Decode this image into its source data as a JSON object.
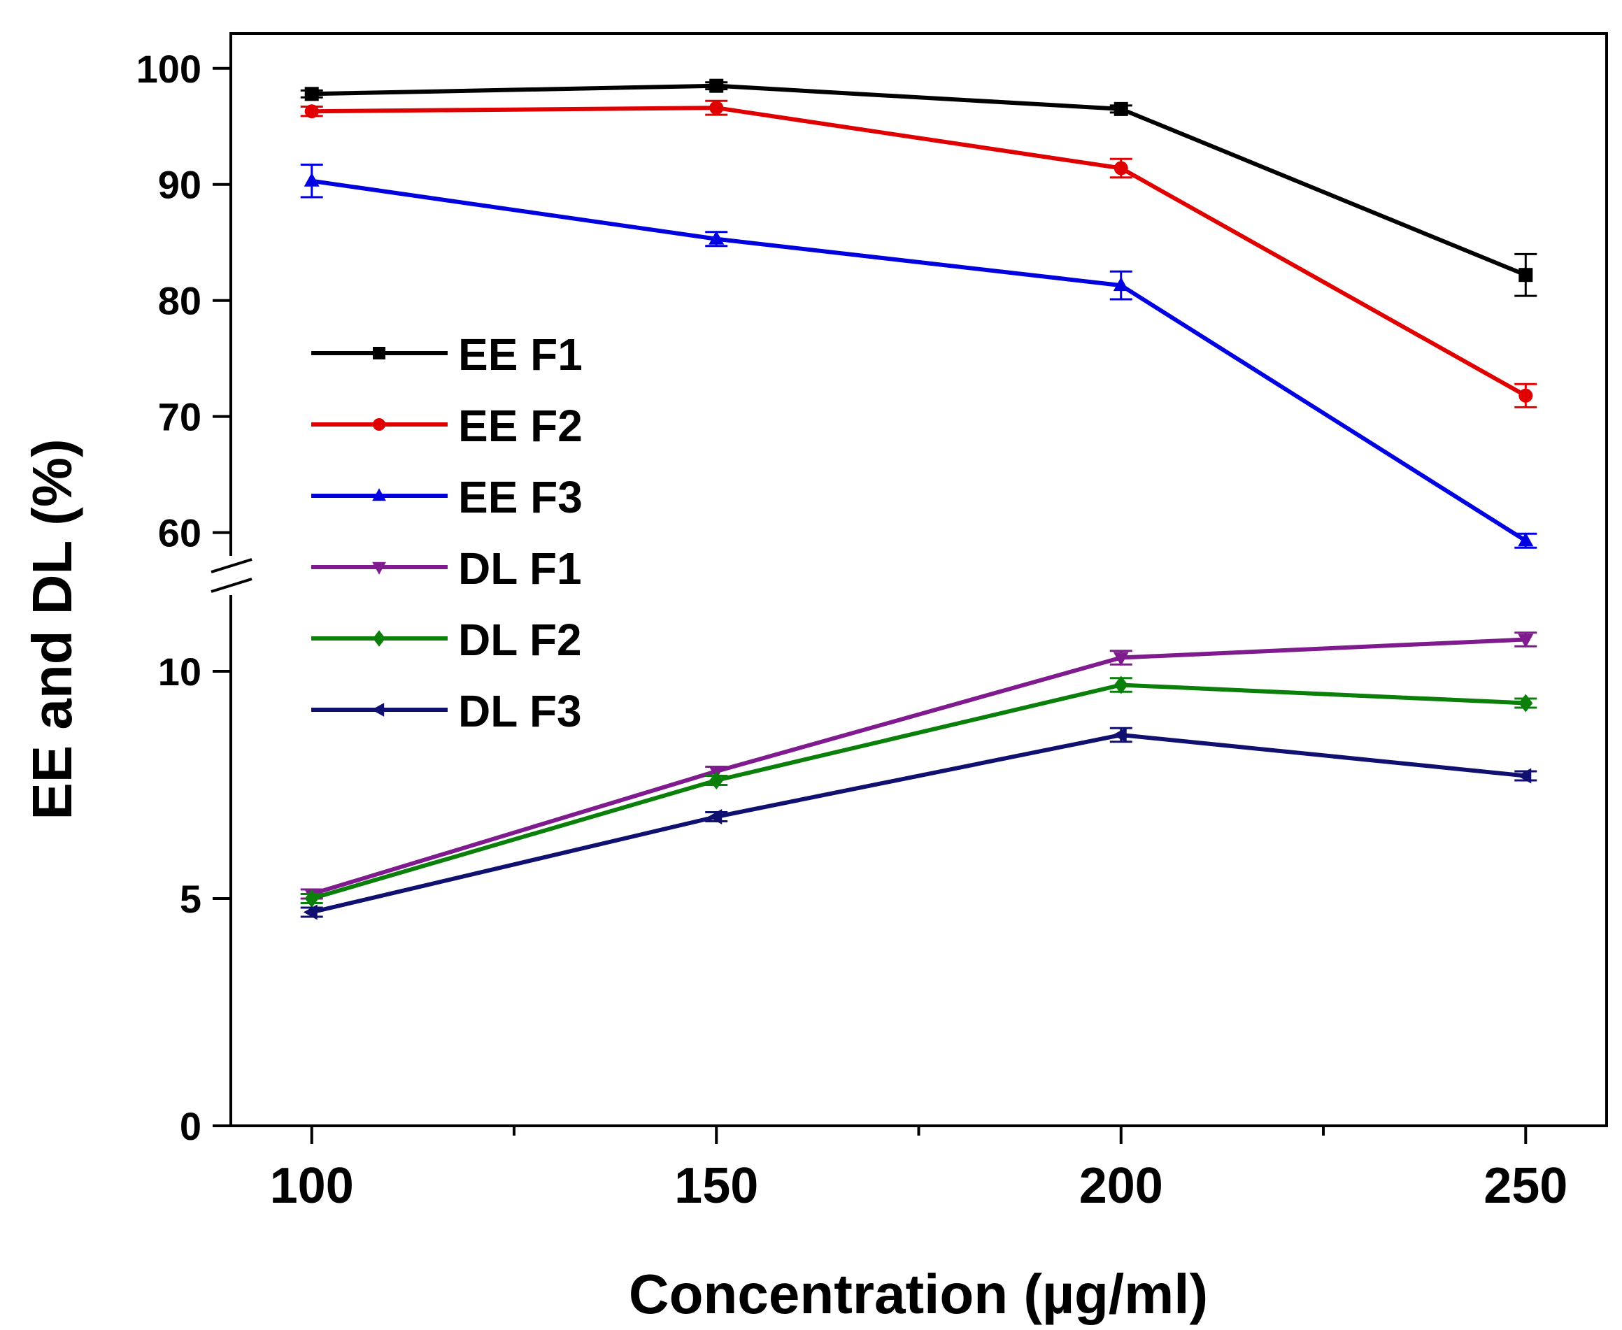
{
  "chart_data": {
    "type": "line",
    "title": "",
    "xlabel": "Concentration (µg/ml)",
    "ylabel": "EE and DL (%)",
    "x": [
      100,
      150,
      200,
      250
    ],
    "xlim": [
      90,
      260
    ],
    "x_ticks": [
      "100",
      "150",
      "200",
      "250"
    ],
    "y_axis_break": true,
    "y_lower_range": [
      0,
      12
    ],
    "y_upper_range": [
      56,
      103
    ],
    "y_ticks_lower": [
      "0",
      "5",
      "10"
    ],
    "y_ticks_upper": [
      "60",
      "70",
      "80",
      "90",
      "100"
    ],
    "legend_position": "upper-left inside plot",
    "series": [
      {
        "name": "EE F1",
        "color": "#000000",
        "marker": "square",
        "values": [
          97.8,
          98.5,
          96.5,
          82.2
        ],
        "errors": [
          0.3,
          0.3,
          0.3,
          1.8
        ]
      },
      {
        "name": "EE F2",
        "color": "#e00000",
        "marker": "circle",
        "values": [
          96.3,
          96.6,
          91.4,
          71.8
        ],
        "errors": [
          0.4,
          0.6,
          0.8,
          1.0
        ]
      },
      {
        "name": "EE F3",
        "color": "#0000e0",
        "marker": "triangle-up",
        "values": [
          90.3,
          85.3,
          81.3,
          59.3
        ],
        "errors": [
          1.4,
          0.6,
          1.2,
          0.6
        ]
      },
      {
        "name": "DL F1",
        "color": "#7f1a8f",
        "marker": "triangle-down",
        "values": [
          5.1,
          7.8,
          10.3,
          10.7
        ],
        "errors": [
          0.1,
          0.1,
          0.15,
          0.15
        ]
      },
      {
        "name": "DL F2",
        "color": "#0a7f0a",
        "marker": "diamond",
        "values": [
          5.0,
          7.6,
          9.7,
          9.3
        ],
        "errors": [
          0.1,
          0.1,
          0.15,
          0.1
        ]
      },
      {
        "name": "DL F3",
        "color": "#101070",
        "marker": "triangle-left",
        "values": [
          4.7,
          6.8,
          8.6,
          7.7
        ],
        "errors": [
          0.1,
          0.1,
          0.15,
          0.1
        ]
      }
    ]
  }
}
